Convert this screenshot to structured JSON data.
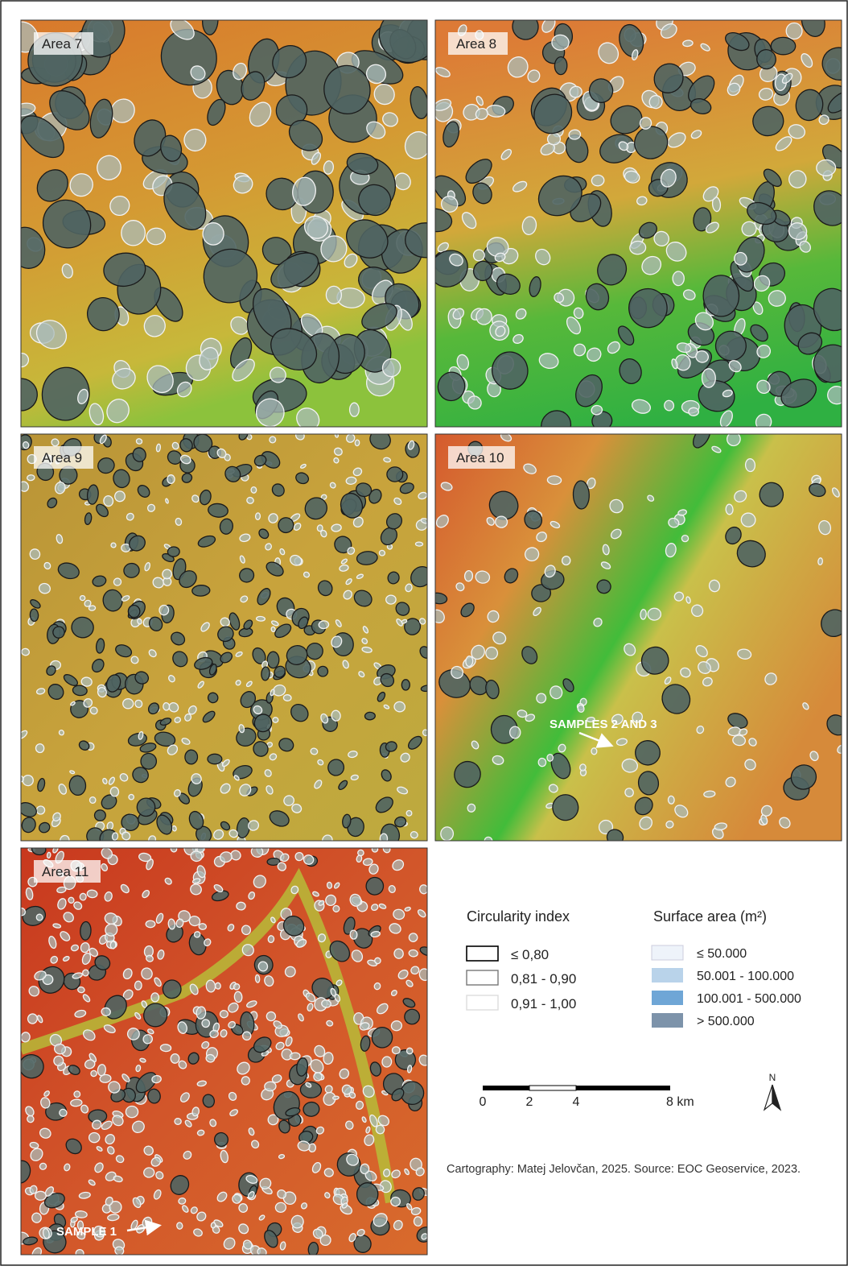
{
  "panels": [
    {
      "label": "Area 7"
    },
    {
      "label": "Area 8"
    },
    {
      "label": "Area 9"
    },
    {
      "label": "Area 10",
      "annotation": "SAMPLES 2 AND 3"
    },
    {
      "label": "Area 11",
      "annotation": "SAMPLE 1"
    }
  ],
  "legend": {
    "circularity": {
      "title": "Circularity index",
      "items": [
        "≤ 0,80",
        "0,81 - 0,90",
        "0,91 - 1,00"
      ]
    },
    "surface_area": {
      "title": "Surface area (m²)",
      "items": [
        "≤ 50.000",
        "50.001 - 100.000",
        "100.001 - 500.000",
        "> 500.000"
      ]
    }
  },
  "scale_bar": {
    "labels": [
      "0",
      "2",
      "4",
      "8 km"
    ]
  },
  "north_arrow": "N",
  "credit": "Cartography: Matej Jelovčan, 2025. Source: EOC Geoservice, 2023."
}
